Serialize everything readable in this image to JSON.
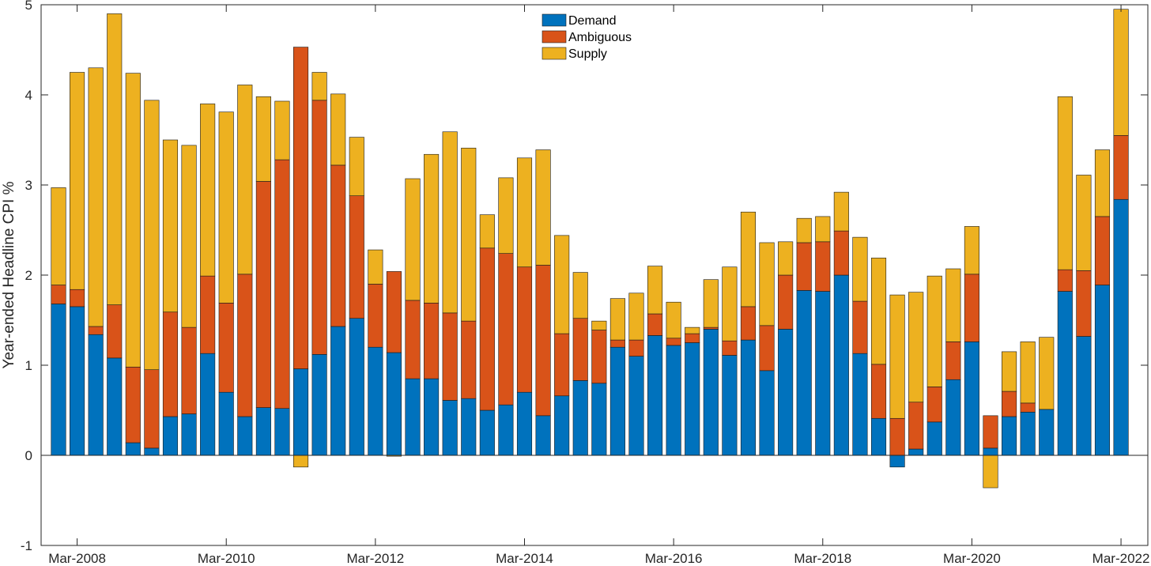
{
  "chart_data": {
    "type": "bar",
    "stacked": true,
    "title": "",
    "xlabel": "",
    "ylabel": "Year-ended Headline CPI %",
    "ylim": [
      -1,
      5
    ],
    "yticks": [
      "-1",
      "0",
      "1",
      "2",
      "3",
      "4",
      "5"
    ],
    "xtick_labels": [
      "Mar-2008",
      "Mar-2010",
      "Mar-2012",
      "Mar-2014",
      "Mar-2016",
      "Mar-2018",
      "Mar-2020",
      "Mar-2022"
    ],
    "xtick_indices": [
      1,
      9,
      17,
      25,
      33,
      41,
      49,
      57
    ],
    "legend_position": "top-center",
    "colors": {
      "Demand": "#0072BD",
      "Ambiguous": "#D95319",
      "Supply": "#EDB120"
    },
    "categories": [
      "Dec-2007",
      "Mar-2008",
      "Jun-2008",
      "Sep-2008",
      "Dec-2008",
      "Mar-2009",
      "Jun-2009",
      "Sep-2009",
      "Dec-2009",
      "Mar-2010",
      "Jun-2010",
      "Sep-2010",
      "Dec-2010",
      "Mar-2011",
      "Jun-2011",
      "Sep-2011",
      "Dec-2011",
      "Mar-2012",
      "Jun-2012",
      "Sep-2012",
      "Dec-2012",
      "Mar-2013",
      "Jun-2013",
      "Sep-2013",
      "Dec-2013",
      "Mar-2014",
      "Jun-2014",
      "Sep-2014",
      "Dec-2014",
      "Mar-2015",
      "Jun-2015",
      "Sep-2015",
      "Dec-2015",
      "Mar-2016",
      "Jun-2016",
      "Sep-2016",
      "Dec-2016",
      "Mar-2017",
      "Jun-2017",
      "Sep-2017",
      "Dec-2017",
      "Mar-2018",
      "Jun-2018",
      "Sep-2018",
      "Dec-2018",
      "Mar-2019",
      "Jun-2019",
      "Sep-2019",
      "Dec-2019",
      "Mar-2020",
      "Jun-2020",
      "Sep-2020",
      "Dec-2020",
      "Mar-2021",
      "Jun-2021",
      "Sep-2021",
      "Dec-2021",
      "Mar-2022"
    ],
    "series": [
      {
        "name": "Demand",
        "values": [
          1.68,
          1.65,
          1.34,
          1.08,
          0.14,
          0.08,
          0.43,
          0.46,
          1.13,
          0.7,
          0.43,
          0.53,
          0.52,
          0.96,
          1.12,
          1.43,
          1.52,
          1.2,
          1.14,
          0.85,
          0.85,
          0.61,
          0.63,
          0.5,
          0.56,
          0.7,
          0.44,
          0.66,
          0.83,
          0.8,
          1.2,
          1.1,
          1.33,
          1.22,
          1.25,
          1.4,
          1.11,
          1.28,
          0.94,
          1.4,
          1.83,
          1.82,
          2.0,
          1.13,
          0.41,
          -0.13,
          0.07,
          0.37,
          0.84,
          1.26,
          0.08,
          0.43,
          0.48,
          0.51,
          1.82,
          1.32,
          1.89,
          2.84
        ]
      },
      {
        "name": "Ambiguous",
        "values": [
          0.21,
          0.19,
          0.09,
          0.59,
          0.84,
          0.87,
          1.16,
          0.96,
          0.86,
          0.99,
          1.58,
          2.51,
          2.76,
          3.57,
          2.82,
          1.79,
          1.36,
          0.7,
          0.9,
          0.87,
          0.84,
          0.97,
          0.86,
          1.8,
          1.68,
          1.39,
          1.67,
          0.69,
          0.69,
          0.59,
          0.08,
          0.18,
          0.24,
          0.08,
          0.1,
          0.02,
          0.16,
          0.37,
          0.5,
          0.6,
          0.53,
          0.55,
          0.49,
          0.58,
          0.6,
          0.41,
          0.52,
          0.39,
          0.42,
          0.75,
          0.36,
          0.28,
          0.1,
          0.0,
          0.24,
          0.73,
          0.76,
          0.71
        ]
      },
      {
        "name": "Supply",
        "values": [
          1.08,
          2.41,
          2.87,
          3.23,
          3.26,
          2.99,
          1.91,
          2.02,
          1.91,
          2.12,
          2.1,
          0.94,
          0.65,
          -0.13,
          0.31,
          0.79,
          0.65,
          0.38,
          -0.01,
          1.35,
          1.65,
          2.01,
          1.92,
          0.37,
          0.84,
          1.21,
          1.28,
          1.09,
          0.51,
          0.1,
          0.46,
          0.52,
          0.53,
          0.4,
          0.07,
          0.53,
          0.82,
          1.05,
          0.92,
          0.37,
          0.27,
          0.28,
          0.43,
          0.71,
          1.18,
          1.37,
          1.22,
          1.23,
          0.81,
          0.53,
          -0.36,
          0.44,
          0.68,
          0.8,
          1.92,
          1.06,
          0.74,
          1.4
        ]
      }
    ]
  }
}
